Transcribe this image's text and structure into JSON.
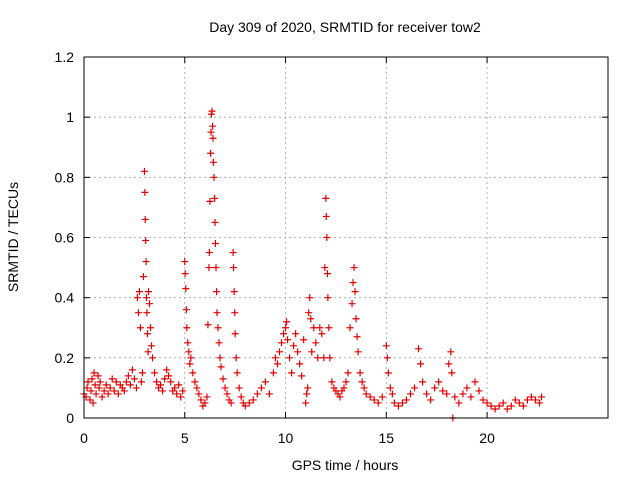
{
  "chart_data": {
    "type": "scatter",
    "title": "Day 309 of 2020, SRMTID for receiver tow2",
    "xlabel": "GPS time / hours",
    "ylabel": "SRMTID / TECUs",
    "xlim": [
      0,
      26
    ],
    "ylim": [
      0,
      1.2
    ],
    "xticks": [
      0,
      5,
      10,
      15,
      20
    ],
    "yticks": [
      0,
      0.2,
      0.4,
      0.6,
      0.8,
      1,
      1.2
    ],
    "xtick_labels": [
      "0",
      "5",
      "10",
      "15",
      "20"
    ],
    "ytick_labels": [
      "0",
      "0.2",
      "0.4",
      "0.6",
      "0.8",
      "1",
      "1.2"
    ],
    "grid": true,
    "legend": "none",
    "marker": "plus",
    "marker_color": "#e00000",
    "series": [
      {
        "name": "SRMTID",
        "points": [
          [
            0.0,
            0.08
          ],
          [
            0.1,
            0.07
          ],
          [
            0.15,
            0.1
          ],
          [
            0.2,
            0.12
          ],
          [
            0.3,
            0.06
          ],
          [
            0.35,
            0.09
          ],
          [
            0.4,
            0.13
          ],
          [
            0.45,
            0.05
          ],
          [
            0.5,
            0.15
          ],
          [
            0.55,
            0.11
          ],
          [
            0.6,
            0.08
          ],
          [
            0.7,
            0.14
          ],
          [
            0.75,
            0.1
          ],
          [
            0.8,
            0.12
          ],
          [
            0.9,
            0.07
          ],
          [
            1.0,
            0.09
          ],
          [
            1.1,
            0.11
          ],
          [
            1.2,
            0.08
          ],
          [
            1.3,
            0.1
          ],
          [
            1.4,
            0.13
          ],
          [
            1.5,
            0.09
          ],
          [
            1.6,
            0.12
          ],
          [
            1.7,
            0.08
          ],
          [
            1.8,
            0.11
          ],
          [
            1.9,
            0.1
          ],
          [
            2.0,
            0.09
          ],
          [
            2.1,
            0.12
          ],
          [
            2.2,
            0.14
          ],
          [
            2.3,
            0.11
          ],
          [
            2.4,
            0.16
          ],
          [
            2.5,
            0.13
          ],
          [
            2.6,
            0.1
          ],
          [
            2.65,
            0.4
          ],
          [
            2.7,
            0.35
          ],
          [
            2.75,
            0.42
          ],
          [
            2.8,
            0.3
          ],
          [
            2.85,
            0.12
          ],
          [
            2.9,
            0.15
          ],
          [
            2.95,
            0.47
          ],
          [
            3.0,
            0.82
          ],
          [
            3.02,
            0.75
          ],
          [
            3.04,
            0.66
          ],
          [
            3.06,
            0.59
          ],
          [
            3.08,
            0.52
          ],
          [
            3.1,
            0.4
          ],
          [
            3.12,
            0.35
          ],
          [
            3.15,
            0.28
          ],
          [
            3.18,
            0.22
          ],
          [
            3.2,
            0.42
          ],
          [
            3.25,
            0.38
          ],
          [
            3.3,
            0.3
          ],
          [
            3.35,
            0.24
          ],
          [
            3.4,
            0.2
          ],
          [
            3.5,
            0.15
          ],
          [
            3.6,
            0.12
          ],
          [
            3.7,
            0.1
          ],
          [
            3.8,
            0.11
          ],
          [
            3.9,
            0.09
          ],
          [
            4.0,
            0.13
          ],
          [
            4.1,
            0.16
          ],
          [
            4.2,
            0.14
          ],
          [
            4.3,
            0.12
          ],
          [
            4.4,
            0.09
          ],
          [
            4.5,
            0.1
          ],
          [
            4.6,
            0.08
          ],
          [
            4.7,
            0.11
          ],
          [
            4.8,
            0.07
          ],
          [
            4.9,
            0.09
          ],
          [
            5.0,
            0.52
          ],
          [
            5.02,
            0.48
          ],
          [
            5.05,
            0.43
          ],
          [
            5.08,
            0.36
          ],
          [
            5.1,
            0.3
          ],
          [
            5.15,
            0.25
          ],
          [
            5.2,
            0.22
          ],
          [
            5.25,
            0.18
          ],
          [
            5.3,
            0.2
          ],
          [
            5.4,
            0.15
          ],
          [
            5.5,
            0.12
          ],
          [
            5.6,
            0.1
          ],
          [
            5.7,
            0.08
          ],
          [
            5.8,
            0.06
          ],
          [
            5.9,
            0.04
          ],
          [
            6.0,
            0.05
          ],
          [
            6.1,
            0.07
          ],
          [
            6.15,
            0.31
          ],
          [
            6.2,
            0.5
          ],
          [
            6.22,
            0.55
          ],
          [
            6.25,
            0.72
          ],
          [
            6.28,
            0.88
          ],
          [
            6.3,
            0.95
          ],
          [
            6.32,
            1.01
          ],
          [
            6.35,
            1.02
          ],
          [
            6.38,
            0.97
          ],
          [
            6.4,
            0.93
          ],
          [
            6.42,
            0.85
          ],
          [
            6.45,
            0.8
          ],
          [
            6.48,
            0.73
          ],
          [
            6.5,
            0.65
          ],
          [
            6.52,
            0.58
          ],
          [
            6.55,
            0.5
          ],
          [
            6.58,
            0.42
          ],
          [
            6.6,
            0.35
          ],
          [
            6.65,
            0.3
          ],
          [
            6.7,
            0.25
          ],
          [
            6.75,
            0.2
          ],
          [
            6.8,
            0.17
          ],
          [
            6.9,
            0.13
          ],
          [
            7.0,
            0.1
          ],
          [
            7.1,
            0.08
          ],
          [
            7.2,
            0.06
          ],
          [
            7.3,
            0.05
          ],
          [
            7.4,
            0.55
          ],
          [
            7.42,
            0.5
          ],
          [
            7.45,
            0.42
          ],
          [
            7.48,
            0.35
          ],
          [
            7.5,
            0.28
          ],
          [
            7.55,
            0.2
          ],
          [
            7.6,
            0.15
          ],
          [
            7.7,
            0.1
          ],
          [
            7.8,
            0.07
          ],
          [
            7.9,
            0.05
          ],
          [
            8.0,
            0.04
          ],
          [
            8.2,
            0.05
          ],
          [
            8.4,
            0.06
          ],
          [
            8.6,
            0.08
          ],
          [
            8.8,
            0.1
          ],
          [
            9.0,
            0.12
          ],
          [
            9.2,
            0.08
          ],
          [
            9.4,
            0.15
          ],
          [
            9.5,
            0.2
          ],
          [
            9.6,
            0.18
          ],
          [
            9.7,
            0.22
          ],
          [
            9.8,
            0.25
          ],
          [
            9.9,
            0.28
          ],
          [
            10.0,
            0.3
          ],
          [
            10.05,
            0.32
          ],
          [
            10.1,
            0.26
          ],
          [
            10.2,
            0.2
          ],
          [
            10.3,
            0.15
          ],
          [
            10.4,
            0.24
          ],
          [
            10.5,
            0.28
          ],
          [
            10.6,
            0.22
          ],
          [
            10.7,
            0.18
          ],
          [
            10.8,
            0.14
          ],
          [
            10.9,
            0.26
          ],
          [
            11.0,
            0.05
          ],
          [
            11.05,
            0.08
          ],
          [
            11.1,
            0.1
          ],
          [
            11.15,
            0.35
          ],
          [
            11.2,
            0.4
          ],
          [
            11.25,
            0.33
          ],
          [
            11.3,
            0.22
          ],
          [
            11.4,
            0.3
          ],
          [
            11.5,
            0.25
          ],
          [
            11.6,
            0.2
          ],
          [
            11.7,
            0.3
          ],
          [
            11.8,
            0.28
          ],
          [
            11.9,
            0.2
          ],
          [
            11.95,
            0.5
          ],
          [
            12.0,
            0.73
          ],
          [
            12.02,
            0.67
          ],
          [
            12.05,
            0.6
          ],
          [
            12.08,
            0.48
          ],
          [
            12.1,
            0.4
          ],
          [
            12.15,
            0.3
          ],
          [
            12.2,
            0.2
          ],
          [
            12.3,
            0.12
          ],
          [
            12.4,
            0.1
          ],
          [
            12.5,
            0.09
          ],
          [
            12.6,
            0.08
          ],
          [
            12.7,
            0.07
          ],
          [
            12.8,
            0.09
          ],
          [
            12.9,
            0.1
          ],
          [
            13.0,
            0.12
          ],
          [
            13.1,
            0.15
          ],
          [
            13.2,
            0.3
          ],
          [
            13.3,
            0.38
          ],
          [
            13.35,
            0.45
          ],
          [
            13.4,
            0.5
          ],
          [
            13.45,
            0.42
          ],
          [
            13.5,
            0.33
          ],
          [
            13.55,
            0.27
          ],
          [
            13.6,
            0.22
          ],
          [
            13.7,
            0.15
          ],
          [
            13.8,
            0.12
          ],
          [
            13.9,
            0.1
          ],
          [
            14.0,
            0.08
          ],
          [
            14.2,
            0.07
          ],
          [
            14.4,
            0.06
          ],
          [
            14.6,
            0.05
          ],
          [
            14.8,
            0.07
          ],
          [
            15.0,
            0.24
          ],
          [
            15.05,
            0.2
          ],
          [
            15.1,
            0.15
          ],
          [
            15.2,
            0.1
          ],
          [
            15.3,
            0.08
          ],
          [
            15.4,
            0.05
          ],
          [
            15.6,
            0.04
          ],
          [
            15.8,
            0.05
          ],
          [
            16.0,
            0.06
          ],
          [
            16.2,
            0.08
          ],
          [
            16.4,
            0.1
          ],
          [
            16.6,
            0.23
          ],
          [
            16.7,
            0.18
          ],
          [
            16.8,
            0.12
          ],
          [
            17.0,
            0.08
          ],
          [
            17.2,
            0.06
          ],
          [
            17.4,
            0.1
          ],
          [
            17.6,
            0.12
          ],
          [
            17.8,
            0.09
          ],
          [
            18.0,
            0.08
          ],
          [
            18.1,
            0.18
          ],
          [
            18.2,
            0.22
          ],
          [
            18.25,
            0.15
          ],
          [
            18.3,
            0.0
          ],
          [
            18.4,
            0.07
          ],
          [
            18.6,
            0.05
          ],
          [
            18.8,
            0.08
          ],
          [
            19.0,
            0.1
          ],
          [
            19.2,
            0.07
          ],
          [
            19.4,
            0.12
          ],
          [
            19.6,
            0.09
          ],
          [
            19.8,
            0.06
          ],
          [
            20.0,
            0.05
          ],
          [
            20.2,
            0.04
          ],
          [
            20.4,
            0.03
          ],
          [
            20.6,
            0.04
          ],
          [
            20.8,
            0.05
          ],
          [
            21.0,
            0.03
          ],
          [
            21.2,
            0.04
          ],
          [
            21.4,
            0.06
          ],
          [
            21.6,
            0.05
          ],
          [
            21.8,
            0.04
          ],
          [
            22.0,
            0.06
          ],
          [
            22.2,
            0.07
          ],
          [
            22.4,
            0.06
          ],
          [
            22.6,
            0.05
          ],
          [
            22.7,
            0.07
          ]
        ]
      }
    ]
  }
}
